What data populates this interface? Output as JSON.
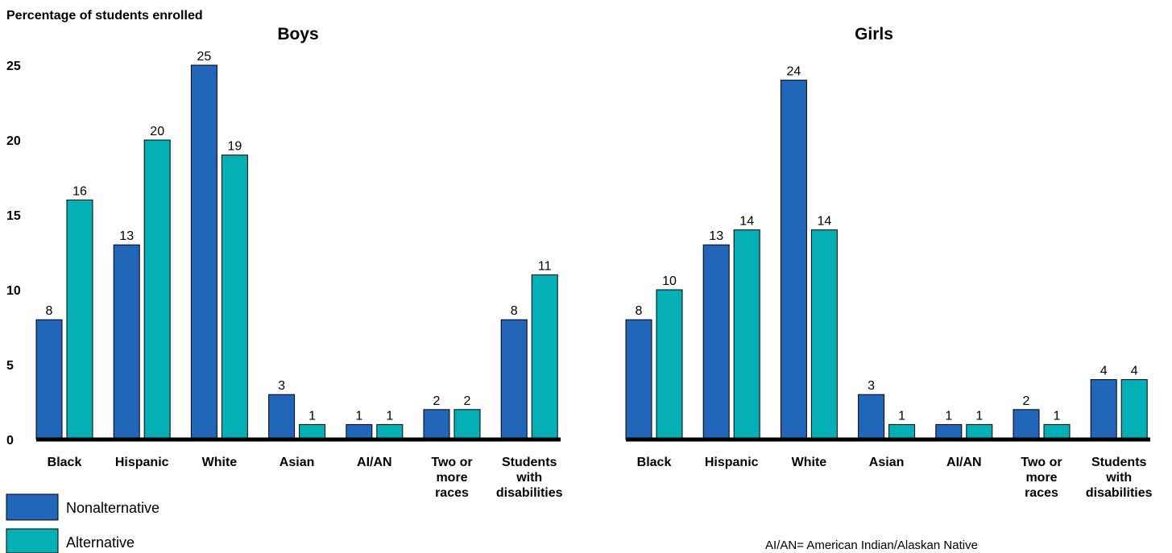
{
  "y_axis_title": "Percentage of students enrolled",
  "footnote": "AI/AN= American Indian/Alaskan Native",
  "legend": [
    {
      "label": "Nonalternative",
      "color": "#2166b8"
    },
    {
      "label": "Alternative",
      "color": "#04b0b5"
    }
  ],
  "chart_data": [
    {
      "type": "bar",
      "title": "Boys",
      "ylabel": "Percentage of students enrolled",
      "xlabel": "",
      "ylim": [
        0,
        25
      ],
      "yticks": [
        0,
        5,
        10,
        15,
        20,
        25
      ],
      "grid": false,
      "legend_position": "bottom-left",
      "categories": [
        [
          "Black"
        ],
        [
          "Hispanic"
        ],
        [
          "White"
        ],
        [
          "Asian"
        ],
        [
          "AI/AN"
        ],
        [
          "Two or",
          "more",
          "races"
        ],
        [
          "Students",
          "with",
          "disabilities"
        ]
      ],
      "series": [
        {
          "name": "Nonalternative",
          "color": "#2166b8",
          "values": [
            8,
            13,
            25,
            3,
            1,
            2,
            8
          ]
        },
        {
          "name": "Alternative",
          "color": "#04b0b5",
          "values": [
            16,
            20,
            19,
            1,
            1,
            2,
            11
          ]
        }
      ]
    },
    {
      "type": "bar",
      "title": "Girls",
      "ylabel": "",
      "xlabel": "",
      "ylim": [
        0,
        25
      ],
      "yticks": [],
      "grid": false,
      "categories": [
        [
          "Black"
        ],
        [
          "Hispanic"
        ],
        [
          "White"
        ],
        [
          "Asian"
        ],
        [
          "AI/AN"
        ],
        [
          "Two or",
          "more",
          "races"
        ],
        [
          "Students",
          "with",
          "disabilities"
        ]
      ],
      "series": [
        {
          "name": "Nonalternative",
          "color": "#2166b8",
          "values": [
            8,
            13,
            24,
            3,
            1,
            2,
            4
          ]
        },
        {
          "name": "Alternative",
          "color": "#04b0b5",
          "values": [
            10,
            14,
            14,
            1,
            1,
            1,
            4
          ]
        }
      ]
    }
  ]
}
